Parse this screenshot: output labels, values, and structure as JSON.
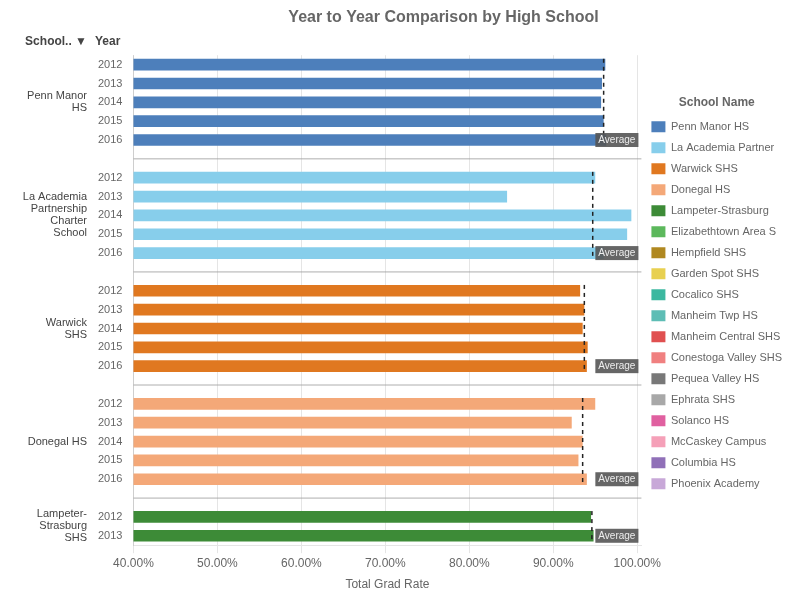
{
  "chart_data": {
    "type": "bar",
    "orientation": "horizontal",
    "title": "Year to Year Comparison by High School",
    "x_label": "Total Grad Rate",
    "y_label": "Year",
    "group_title": "School.. ▼",
    "legend_title": "School Name",
    "legend": "right",
    "grid": true,
    "average_label": "Average",
    "categories": [
      "2012",
      "2013",
      "2014",
      "2015",
      "2016",
      null,
      "2012",
      "2013",
      "2014",
      "2015",
      "2016",
      null,
      "2012",
      "2013",
      "2014",
      "2015",
      "2016",
      null,
      "2012",
      "2013",
      "2014",
      "2015",
      "2016",
      null,
      "2012",
      "2013"
    ],
    "series": [
      {
        "name": "Penn Manor HS",
        "color": "#4d7fbb",
        "values": [
          0.962,
          0.958,
          0.957,
          0.96,
          0.963,
          null,
          null,
          null,
          null,
          null,
          null,
          null,
          null,
          null,
          null,
          null,
          null,
          null,
          null,
          null,
          null,
          null,
          null,
          null,
          null,
          null
        ]
      },
      {
        "name": "La Academia Partner",
        "color": "#87CEEB",
        "values": [
          null,
          null,
          null,
          null,
          null,
          null,
          0.95,
          0.845,
          0.993,
          0.988,
          0.96,
          null,
          null,
          null,
          null,
          null,
          null,
          null,
          null,
          null,
          null,
          null,
          null,
          null,
          null,
          null
        ]
      },
      {
        "name": "Warwick SHS",
        "color": "#e07820",
        "values": [
          null,
          null,
          null,
          null,
          null,
          null,
          null,
          null,
          null,
          null,
          null,
          null,
          0.932,
          0.937,
          0.935,
          0.941,
          0.94,
          null,
          null,
          null,
          null,
          null,
          null,
          null,
          null,
          null
        ]
      },
      {
        "name": "Donegal HS",
        "color": "#f4a878",
        "values": [
          null,
          null,
          null,
          null,
          null,
          null,
          null,
          null,
          null,
          null,
          null,
          null,
          null,
          null,
          null,
          null,
          null,
          null,
          0.95,
          0.922,
          0.935,
          0.93,
          0.94,
          null,
          null,
          null
        ]
      },
      {
        "name": "Lampeter-Strasburg",
        "color": "#3d8b37",
        "values": [
          null,
          null,
          null,
          null,
          null,
          null,
          null,
          null,
          null,
          null,
          null,
          null,
          null,
          null,
          null,
          null,
          null,
          null,
          null,
          null,
          null,
          null,
          null,
          null,
          0.945,
          0.948
        ]
      },
      {
        "name": "Elizabethtown Area S",
        "color": "#5cb85c",
        "values": [
          null,
          null,
          null,
          null,
          null,
          null,
          null,
          null,
          null,
          null,
          null,
          null,
          null,
          null,
          null,
          null,
          null,
          null,
          null,
          null,
          null,
          null,
          null,
          null,
          null,
          null
        ]
      },
      {
        "name": "Hempfield SHS",
        "color": "#b08820",
        "values": [
          null,
          null,
          null,
          null,
          null,
          null,
          null,
          null,
          null,
          null,
          null,
          null,
          null,
          null,
          null,
          null,
          null,
          null,
          null,
          null,
          null,
          null,
          null,
          null,
          null,
          null
        ]
      },
      {
        "name": "Garden Spot SHS",
        "color": "#e8d050",
        "values": [
          null,
          null,
          null,
          null,
          null,
          null,
          null,
          null,
          null,
          null,
          null,
          null,
          null,
          null,
          null,
          null,
          null,
          null,
          null,
          null,
          null,
          null,
          null,
          null,
          null,
          null
        ]
      },
      {
        "name": "Cocalico SHS",
        "color": "#3cb8a0",
        "values": [
          null,
          null,
          null,
          null,
          null,
          null,
          null,
          null,
          null,
          null,
          null,
          null,
          null,
          null,
          null,
          null,
          null,
          null,
          null,
          null,
          null,
          null,
          null,
          null,
          null,
          null
        ]
      },
      {
        "name": "Manheim Twp HS",
        "color": "#5dbdb5",
        "values": [
          null,
          null,
          null,
          null,
          null,
          null,
          null,
          null,
          null,
          null,
          null,
          null,
          null,
          null,
          null,
          null,
          null,
          null,
          null,
          null,
          null,
          null,
          null,
          null,
          null,
          null
        ]
      },
      {
        "name": "Manheim Central SHS",
        "color": "#e05050",
        "values": [
          null,
          null,
          null,
          null,
          null,
          null,
          null,
          null,
          null,
          null,
          null,
          null,
          null,
          null,
          null,
          null,
          null,
          null,
          null,
          null,
          null,
          null,
          null,
          null,
          null,
          null
        ]
      },
      {
        "name": "Conestoga Valley SHS",
        "color": "#f08080",
        "values": [
          null,
          null,
          null,
          null,
          null,
          null,
          null,
          null,
          null,
          null,
          null,
          null,
          null,
          null,
          null,
          null,
          null,
          null,
          null,
          null,
          null,
          null,
          null,
          null,
          null,
          null
        ]
      },
      {
        "name": "Pequea Valley HS",
        "color": "#787878",
        "values": [
          null,
          null,
          null,
          null,
          null,
          null,
          null,
          null,
          null,
          null,
          null,
          null,
          null,
          null,
          null,
          null,
          null,
          null,
          null,
          null,
          null,
          null,
          null,
          null,
          null,
          null
        ]
      },
      {
        "name": "Ephrata SHS",
        "color": "#a8a8a8",
        "values": [
          null,
          null,
          null,
          null,
          null,
          null,
          null,
          null,
          null,
          null,
          null,
          null,
          null,
          null,
          null,
          null,
          null,
          null,
          null,
          null,
          null,
          null,
          null,
          null,
          null,
          null
        ]
      },
      {
        "name": "Solanco HS",
        "color": "#e060a0",
        "values": [
          null,
          null,
          null,
          null,
          null,
          null,
          null,
          null,
          null,
          null,
          null,
          null,
          null,
          null,
          null,
          null,
          null,
          null,
          null,
          null,
          null,
          null,
          null,
          null,
          null,
          null
        ]
      },
      {
        "name": "McCaskey Campus",
        "color": "#f5a0b8",
        "values": [
          null,
          null,
          null,
          null,
          null,
          null,
          null,
          null,
          null,
          null,
          null,
          null,
          null,
          null,
          null,
          null,
          null,
          null,
          null,
          null,
          null,
          null,
          null,
          null,
          null,
          null
        ]
      },
      {
        "name": "Columbia HS",
        "color": "#9070b8",
        "values": [
          null,
          null,
          null,
          null,
          null,
          null,
          null,
          null,
          null,
          null,
          null,
          null,
          null,
          null,
          null,
          null,
          null,
          null,
          null,
          null,
          null,
          null,
          null,
          null,
          null,
          null
        ]
      },
      {
        "name": "Phoenix Academy",
        "color": "#c8a8d8",
        "values": [
          null,
          null,
          null,
          null,
          null,
          null,
          null,
          null,
          null,
          null,
          null,
          null,
          null,
          null,
          null,
          null,
          null,
          null,
          null,
          null,
          null,
          null,
          null,
          null,
          null,
          null
        ]
      }
    ],
    "groups": [
      {
        "name": "Penn Manor\nHS",
        "average": 0.96
      },
      {
        "name": "La Academia\nPartnership\nCharter\nSchool",
        "average": 0.947
      },
      {
        "name": "Warwick\nSHS",
        "average": 0.937
      },
      {
        "name": "Donegal HS",
        "average": 0.935
      },
      {
        "name": "Lampeter-\nStrasburg\nSHS",
        "average": 0.946
      }
    ],
    "xlim": [
      0.4,
      1.005
    ],
    "xticks": [
      {
        "value": 0.4,
        "label": "40.00%"
      },
      {
        "value": 0.5,
        "label": "50.00%"
      },
      {
        "value": 0.6,
        "label": "60.00%"
      },
      {
        "value": 0.7,
        "label": "70.00%"
      },
      {
        "value": 0.8,
        "label": "80.00%"
      },
      {
        "value": 0.9,
        "label": "90.00%"
      },
      {
        "value": 1.0,
        "label": "100.00%"
      }
    ]
  }
}
